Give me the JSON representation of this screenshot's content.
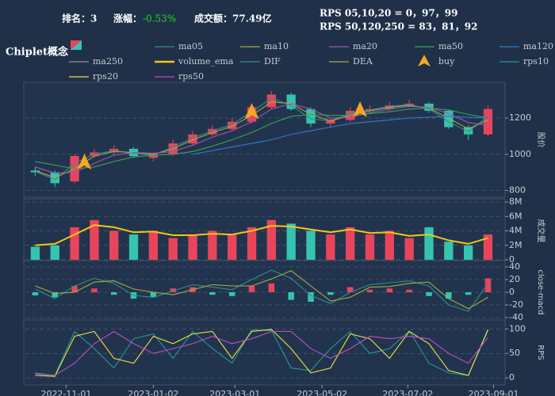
{
  "header": {
    "rank": "排名：3",
    "change_label": "涨幅：",
    "change": "-0.53%",
    "turnover": "成交额：77.49亿",
    "rps_short": "RPS 05,10,20 = 0，97，99",
    "rps_long": "RPS 50,120,250 = 83，81，92"
  },
  "chart_data": {
    "type": "candlestick",
    "title": "Chiplet概念",
    "x": [
      "2022-10-10",
      "2022-10-24",
      "2022-11-07",
      "2022-11-21",
      "2022-12-05",
      "2022-12-19",
      "2023-01-02",
      "2023-01-16",
      "2023-01-30",
      "2023-02-13",
      "2023-02-27",
      "2023-03-13",
      "2023-03-27",
      "2023-04-10",
      "2023-04-24",
      "2023-05-08",
      "2023-05-22",
      "2023-06-05",
      "2023-06-19",
      "2023-07-03",
      "2023-07-17",
      "2023-07-31",
      "2023-08-14",
      "2023-08-28"
    ],
    "xlim": [
      "2022-10-03",
      "2023-09-08"
    ],
    "xticks": [
      "2022-11-01",
      "2023-01-02",
      "2023-03-01",
      "2023-05-02",
      "2023-07-02",
      "2023-09-01"
    ],
    "panels": [
      {
        "type": "candlestick",
        "ylabel": "股价",
        "ylim": [
          780,
          1380
        ],
        "yticks": [
          800,
          1000,
          1200
        ],
        "grid": true,
        "up_color": "#e8455c",
        "down_color": "#35c4b0",
        "open": [
          910,
          900,
          850,
          990,
          1010,
          1030,
          980,
          1000,
          1060,
          1110,
          1140,
          1180,
          1260,
          1330,
          1250,
          1170,
          1190,
          1240,
          1250,
          1270,
          1280,
          1240,
          1150,
          1110
        ],
        "high": [
          930,
          910,
          1000,
          1030,
          1050,
          1040,
          1010,
          1080,
          1130,
          1160,
          1200,
          1280,
          1350,
          1340,
          1260,
          1200,
          1260,
          1270,
          1290,
          1300,
          1290,
          1250,
          1160,
          1270
        ],
        "low": [
          880,
          820,
          840,
          980,
          1000,
          980,
          960,
          990,
          1050,
          1100,
          1130,
          1170,
          1250,
          1240,
          1150,
          1150,
          1180,
          1230,
          1240,
          1260,
          1230,
          1140,
          1080,
          1100
        ],
        "close": [
          900,
          840,
          990,
          1010,
          1030,
          990,
          1000,
          1060,
          1110,
          1140,
          1180,
          1260,
          1330,
          1250,
          1170,
          1190,
          1240,
          1250,
          1270,
          1280,
          1240,
          1150,
          1110,
          1250
        ],
        "series": [
          {
            "name": "ma05",
            "color": "#2f8f8a",
            "values": [
              905,
              860,
              950,
              1000,
              1020,
              1005,
              995,
              1040,
              1090,
              1130,
              1165,
              1235,
              1310,
              1270,
              1195,
              1185,
              1225,
              1245,
              1265,
              1275,
              1250,
              1180,
              1125,
              1210
            ]
          },
          {
            "name": "ma10",
            "color": "#a8a84a",
            "values": [
              910,
              870,
              920,
              990,
              1015,
              1010,
              1000,
              1030,
              1080,
              1120,
              1155,
              1215,
              1290,
              1280,
              1220,
              1185,
              1215,
              1240,
              1260,
              1270,
              1255,
              1200,
              1140,
              1190
            ]
          },
          {
            "name": "ma20",
            "color": "#9b59b6",
            "values": [
              930,
              895,
              900,
              950,
              995,
              1010,
              1005,
              1015,
              1050,
              1095,
              1130,
              1180,
              1250,
              1280,
              1250,
              1200,
              1205,
              1230,
              1250,
              1265,
              1260,
              1225,
              1175,
              1160
            ]
          },
          {
            "name": "ma50",
            "color": "#3aa35a",
            "values": [
              960,
              940,
              920,
              930,
              960,
              985,
              995,
              1000,
              1015,
              1045,
              1080,
              1120,
              1170,
              1210,
              1220,
              1215,
              1215,
              1225,
              1235,
              1250,
              1255,
              1245,
              1220,
              1200
            ]
          },
          {
            "name": "ma120",
            "color": "#2e7bd0",
            "values": [
              null,
              null,
              null,
              null,
              null,
              null,
              null,
              null,
              1000,
              1020,
              1040,
              1060,
              1080,
              1110,
              1130,
              1150,
              1170,
              1180,
              1190,
              1200,
              1205,
              1210,
              1205,
              1200
            ]
          },
          {
            "name": "ma250",
            "color": "#8a8f99",
            "values": [
              null,
              null,
              null,
              null,
              null,
              null,
              null,
              null,
              null,
              null,
              null,
              null,
              null,
              null,
              null,
              null,
              null,
              null,
              null,
              null,
              null,
              null,
              null,
              null
            ]
          }
        ],
        "markers": {
          "name": "buy",
          "color": "#f5a623",
          "x": [
            "2022-11-14",
            "2023-03-13",
            "2023-05-29"
          ],
          "values": [
            950,
            1230,
            1240
          ]
        }
      },
      {
        "type": "bar",
        "ylabel": "成交量",
        "ylim": [
          0,
          8000000
        ],
        "grid": true,
        "yticks": [
          0,
          {
            "value": 2000000,
            "label": "2M"
          },
          {
            "value": 4000000,
            "label": "4M"
          },
          {
            "value": 6000000,
            "label": "6M"
          },
          {
            "value": 8000000,
            "label": "8M"
          }
        ],
        "values": [
          1800000,
          2000000,
          4500000,
          5500000,
          4000000,
          3500000,
          4000000,
          3000000,
          3500000,
          4000000,
          3500000,
          4500000,
          5500000,
          5000000,
          4000000,
          3500000,
          4500000,
          3500000,
          4000000,
          3000000,
          4500000,
          2500000,
          2000000,
          3500000
        ],
        "series": [
          {
            "name": "volume_ema",
            "color": "#f5c518",
            "values": [
              2000000,
              2200000,
              3500000,
              4800000,
              4500000,
              3800000,
              3900000,
              3400000,
              3400000,
              3600000,
              3500000,
              4000000,
              4700000,
              4600000,
              4200000,
              3800000,
              4200000,
              3700000,
              3800000,
              3300000,
              3500000,
              2700000,
              2200000,
              3000000
            ]
          }
        ]
      },
      {
        "type": "histogram",
        "ylabel": "close-macd",
        "ylim": [
          -45,
          45
        ],
        "yticks": [
          -40,
          -20,
          0,
          20,
          40
        ],
        "grid": true,
        "up_color": "#e8455c",
        "down_color": "#35c4b0",
        "values": [
          -5,
          -8,
          10,
          6,
          -4,
          -10,
          -8,
          6,
          8,
          -4,
          -6,
          10,
          14,
          -12,
          -15,
          -4,
          8,
          4,
          6,
          4,
          -6,
          -10,
          -4,
          22
        ],
        "series": [
          {
            "name": "DIF",
            "color": "#2f8f8a",
            "values": [
              5,
              -10,
              10,
              22,
              14,
              -5,
              -8,
              2,
              12,
              8,
              4,
              20,
              35,
              22,
              -5,
              -18,
              0,
              12,
              15,
              18,
              10,
              -20,
              -30,
              14
            ]
          },
          {
            "name": "DEA",
            "color": "#a8a84a",
            "values": [
              10,
              -2,
              0,
              16,
              18,
              5,
              0,
              -4,
              4,
              12,
              10,
              10,
              21,
              34,
              10,
              -14,
              -8,
              8,
              9,
              14,
              16,
              -10,
              -26,
              -8
            ]
          }
        ]
      },
      {
        "type": "line",
        "ylabel": "RPS",
        "ylim": [
          -8,
          112
        ],
        "yticks": [
          0,
          50,
          100
        ],
        "grid": true,
        "series": [
          {
            "name": "rps10",
            "color": "#1f9a9a",
            "values": [
              10,
              5,
              95,
              60,
              20,
              80,
              90,
              40,
              95,
              60,
              30,
              98,
              97,
              20,
              15,
              60,
              95,
              50,
              60,
              96,
              30,
              10,
              5,
              97
            ]
          },
          {
            "name": "rps20",
            "color": "#f0e040",
            "values": [
              5,
              3,
              85,
              95,
              40,
              30,
              85,
              70,
              90,
              95,
              40,
              95,
              99,
              60,
              10,
              20,
              90,
              80,
              40,
              95,
              70,
              15,
              5,
              99
            ]
          },
          {
            "name": "rps50",
            "color": "#c04cc8",
            "values": [
              8,
              5,
              30,
              70,
              95,
              70,
              50,
              60,
              70,
              85,
              70,
              80,
              95,
              95,
              60,
              40,
              60,
              85,
              80,
              85,
              80,
              50,
              30,
              83
            ]
          }
        ]
      }
    ]
  }
}
